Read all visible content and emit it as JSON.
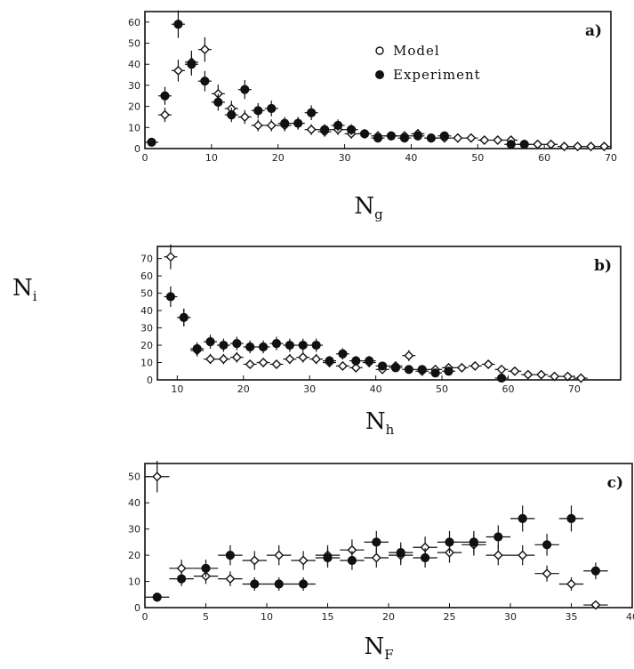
{
  "ylabel": {
    "main": "N",
    "sub": "i"
  },
  "legend": {
    "model": "Model",
    "experiment": "Experiment"
  },
  "chart_data": [
    {
      "type": "scatter",
      "panel_label": "a)",
      "xlabel": {
        "main": "N",
        "sub": "g"
      },
      "xlim": [
        0,
        70
      ],
      "ylim": [
        0,
        65
      ],
      "xticks": [
        0,
        10,
        20,
        30,
        40,
        50,
        60,
        70
      ],
      "yticks": [
        0,
        10,
        20,
        30,
        40,
        50,
        60
      ],
      "series": [
        {
          "name": "Model",
          "marker": "open",
          "x": [
            3,
            5,
            7,
            9,
            11,
            13,
            15,
            17,
            19,
            21,
            23,
            25,
            27,
            29,
            31,
            33,
            35,
            37,
            39,
            41,
            43,
            45,
            47,
            49,
            51,
            53,
            55,
            57,
            59,
            61,
            63,
            65,
            67,
            69
          ],
          "y": [
            16,
            37,
            41,
            47,
            26,
            19,
            15,
            11,
            11,
            11,
            12,
            9,
            8,
            9,
            7,
            7,
            6,
            6,
            6,
            7,
            5,
            5,
            5,
            5,
            4,
            4,
            4,
            2,
            2,
            2,
            1,
            1,
            1,
            1
          ]
        },
        {
          "name": "Experiment",
          "marker": "filled",
          "x": [
            1,
            3,
            5,
            7,
            9,
            11,
            13,
            15,
            17,
            19,
            21,
            23,
            25,
            27,
            29,
            31,
            33,
            35,
            37,
            39,
            41,
            43,
            45,
            55,
            57
          ],
          "y": [
            3,
            25,
            59,
            40,
            32,
            22,
            16,
            28,
            18,
            19,
            12,
            12,
            17,
            9,
            11,
            9,
            7,
            5,
            6,
            5,
            6,
            5,
            6,
            2,
            2
          ]
        }
      ]
    },
    {
      "type": "scatter",
      "panel_label": "b)",
      "xlabel": {
        "main": "N",
        "sub": "h"
      },
      "xlim": [
        7,
        77
      ],
      "ylim": [
        0,
        77
      ],
      "xticks": [
        10,
        20,
        30,
        40,
        50,
        60,
        70
      ],
      "yticks": [
        0,
        10,
        20,
        30,
        40,
        50,
        60,
        70
      ],
      "series": [
        {
          "name": "Model",
          "marker": "open",
          "x": [
            9,
            11,
            13,
            15,
            17,
            19,
            21,
            23,
            25,
            27,
            29,
            31,
            33,
            35,
            37,
            39,
            41,
            43,
            45,
            47,
            49,
            51,
            53,
            55,
            57,
            59,
            61,
            63,
            65,
            67,
            69,
            71
          ],
          "y": [
            71,
            36,
            17,
            12,
            12,
            13,
            9,
            10,
            9,
            12,
            13,
            12,
            10,
            8,
            7,
            10,
            6,
            8,
            14,
            5,
            6,
            7,
            7,
            8,
            9,
            6,
            5,
            3,
            3,
            2,
            2,
            1
          ]
        },
        {
          "name": "Experiment",
          "marker": "filled",
          "x": [
            9,
            11,
            13,
            15,
            17,
            19,
            21,
            23,
            25,
            27,
            29,
            31,
            33,
            35,
            37,
            39,
            41,
            43,
            45,
            47,
            49,
            51,
            59
          ],
          "y": [
            48,
            36,
            18,
            22,
            20,
            21,
            19,
            19,
            21,
            20,
            20,
            20,
            11,
            15,
            11,
            11,
            8,
            7,
            6,
            6,
            4,
            5,
            1
          ]
        }
      ]
    },
    {
      "type": "scatter",
      "panel_label": "c)",
      "xlabel": {
        "main": "N",
        "sub": "F"
      },
      "xlim": [
        0,
        40
      ],
      "ylim": [
        0,
        55
      ],
      "xticks": [
        0,
        5,
        10,
        15,
        20,
        25,
        30,
        35,
        40
      ],
      "yticks": [
        0,
        10,
        20,
        30,
        40,
        50
      ],
      "series": [
        {
          "name": "Model",
          "marker": "open",
          "x": [
            1,
            3,
            5,
            7,
            9,
            11,
            13,
            15,
            17,
            19,
            21,
            23,
            25,
            27,
            29,
            31,
            33,
            35,
            37
          ],
          "y": [
            50,
            15,
            12,
            11,
            18,
            20,
            18,
            20,
            22,
            19,
            20,
            23,
            21,
            24,
            20,
            20,
            13,
            9,
            1
          ]
        },
        {
          "name": "Experiment",
          "marker": "filled",
          "x": [
            1,
            3,
            5,
            7,
            9,
            11,
            13,
            15,
            17,
            19,
            21,
            23,
            25,
            27,
            29,
            31,
            33,
            35,
            37
          ],
          "y": [
            4,
            11,
            15,
            20,
            9,
            9,
            9,
            19,
            18,
            25,
            21,
            19,
            25,
            25,
            27,
            34,
            24,
            34,
            14
          ]
        }
      ]
    }
  ]
}
